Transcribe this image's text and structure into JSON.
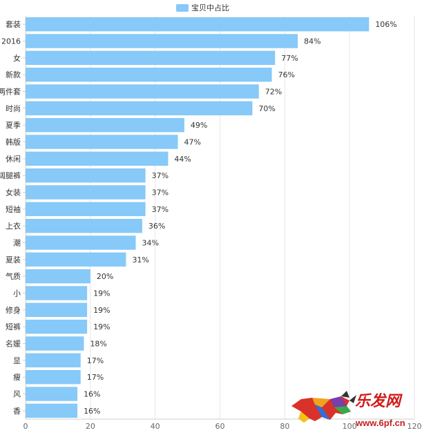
{
  "chart_data": {
    "type": "bar",
    "orientation": "horizontal",
    "legend": {
      "position": "top-center",
      "entries": [
        "宝贝中占比"
      ]
    },
    "categories": [
      "套装",
      "2016",
      "女",
      "新款",
      "两件套",
      "时尚",
      "夏季",
      "韩版",
      "休闲",
      "阔腿裤",
      "女装",
      "短袖",
      "上衣",
      "潮",
      "夏装",
      "气质",
      "小",
      "修身",
      "短裤",
      "名媛",
      "显",
      "瘦",
      "风",
      "香"
    ],
    "series": [
      {
        "name": "宝贝中占比",
        "color": "#87c9f8",
        "values": [
          106,
          84,
          77,
          76,
          72,
          70,
          49,
          47,
          44,
          37,
          37,
          37,
          36,
          34,
          31,
          20,
          19,
          19,
          19,
          18,
          17,
          17,
          16,
          16
        ],
        "labels": [
          "106%",
          "84%",
          "77%",
          "76%",
          "72%",
          "70%",
          "49%",
          "47%",
          "44%",
          "37%",
          "37%",
          "37%",
          "36%",
          "34%",
          "31%",
          "20%",
          "19%",
          "19%",
          "19%",
          "18%",
          "17%",
          "17%",
          "16%",
          "16%"
        ]
      }
    ],
    "xlim": [
      0,
      120
    ],
    "xticks": [
      "0",
      "20",
      "40",
      "60",
      "80",
      "100",
      "120"
    ],
    "grid": true
  },
  "watermark": {
    "brand": "乐发网",
    "url": "www.6pf.cn",
    "icon": "bull-logo-icon",
    "color_brand": "#d11a1a",
    "color_url": "#c62020"
  }
}
